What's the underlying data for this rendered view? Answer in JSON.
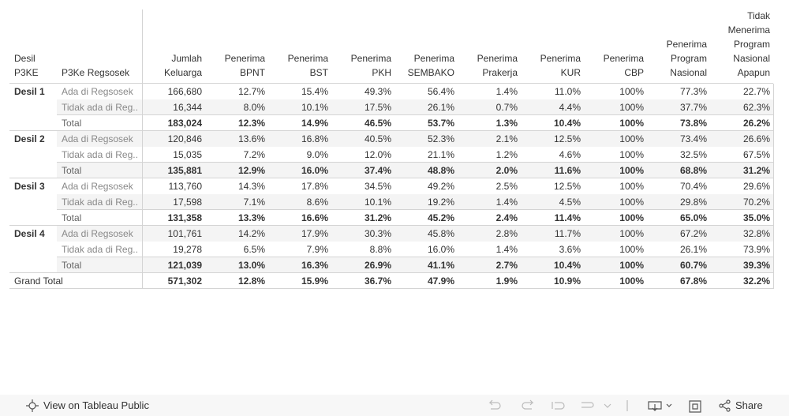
{
  "table": {
    "header": [
      "Desil P3KE",
      "P3Ke Regsosek",
      "Jumlah Keluarga",
      "Penerima BPNT",
      "Penerima BST",
      "Penerima PKH",
      "Penerima SEMBAKO",
      "Penerima Prakerja",
      "Penerima KUR",
      "Penerima CBP",
      "Penerima Program Nasional",
      "Tidak Menerima Program Nasional Apapun"
    ],
    "groups": [
      {
        "name": "Desil 1",
        "rows": [
          {
            "label": "Ada di Regsosek",
            "cells": [
              "166,680",
              "12.7%",
              "15.4%",
              "49.3%",
              "56.4%",
              "1.4%",
              "11.0%",
              "100%",
              "77.3%",
              "22.7%"
            ]
          },
          {
            "label": "Tidak ada di Reg..",
            "cells": [
              "16,344",
              "8.0%",
              "10.1%",
              "17.5%",
              "26.1%",
              "0.7%",
              "4.4%",
              "100%",
              "37.7%",
              "62.3%"
            ]
          },
          {
            "label": "Total",
            "cells": [
              "183,024",
              "12.3%",
              "14.9%",
              "46.5%",
              "53.7%",
              "1.3%",
              "10.4%",
              "100%",
              "73.8%",
              "26.2%"
            ]
          }
        ]
      },
      {
        "name": "Desil 2",
        "rows": [
          {
            "label": "Ada di Regsosek",
            "cells": [
              "120,846",
              "13.6%",
              "16.8%",
              "40.5%",
              "52.3%",
              "2.1%",
              "12.5%",
              "100%",
              "73.4%",
              "26.6%"
            ]
          },
          {
            "label": "Tidak ada di Reg..",
            "cells": [
              "15,035",
              "7.2%",
              "9.0%",
              "12.0%",
              "21.1%",
              "1.2%",
              "4.6%",
              "100%",
              "32.5%",
              "67.5%"
            ]
          },
          {
            "label": "Total",
            "cells": [
              "135,881",
              "12.9%",
              "16.0%",
              "37.4%",
              "48.8%",
              "2.0%",
              "11.6%",
              "100%",
              "68.8%",
              "31.2%"
            ]
          }
        ]
      },
      {
        "name": "Desil 3",
        "rows": [
          {
            "label": "Ada di Regsosek",
            "cells": [
              "113,760",
              "14.3%",
              "17.8%",
              "34.5%",
              "49.2%",
              "2.5%",
              "12.5%",
              "100%",
              "70.4%",
              "29.6%"
            ]
          },
          {
            "label": "Tidak ada di Reg..",
            "cells": [
              "17,598",
              "7.1%",
              "8.6%",
              "10.1%",
              "19.2%",
              "1.4%",
              "4.5%",
              "100%",
              "29.8%",
              "70.2%"
            ]
          },
          {
            "label": "Total",
            "cells": [
              "131,358",
              "13.3%",
              "16.6%",
              "31.2%",
              "45.2%",
              "2.4%",
              "11.4%",
              "100%",
              "65.0%",
              "35.0%"
            ]
          }
        ]
      },
      {
        "name": "Desil 4",
        "rows": [
          {
            "label": "Ada di Regsosek",
            "cells": [
              "101,761",
              "14.2%",
              "17.9%",
              "30.3%",
              "45.8%",
              "2.8%",
              "11.7%",
              "100%",
              "67.2%",
              "32.8%"
            ]
          },
          {
            "label": "Tidak ada di Reg..",
            "cells": [
              "19,278",
              "6.5%",
              "7.9%",
              "8.8%",
              "16.0%",
              "1.4%",
              "3.6%",
              "100%",
              "26.1%",
              "73.9%"
            ]
          },
          {
            "label": "Total",
            "cells": [
              "121,039",
              "13.0%",
              "16.3%",
              "26.9%",
              "41.1%",
              "2.7%",
              "10.4%",
              "100%",
              "60.7%",
              "39.3%"
            ]
          }
        ]
      }
    ],
    "grand_total": {
      "label": "Grand Total",
      "cells": [
        "571,302",
        "12.8%",
        "15.9%",
        "36.7%",
        "47.9%",
        "1.9%",
        "10.9%",
        "100%",
        "67.8%",
        "32.2%"
      ]
    }
  },
  "toolbar": {
    "view_link": "View on Tableau Public",
    "share": "Share"
  }
}
